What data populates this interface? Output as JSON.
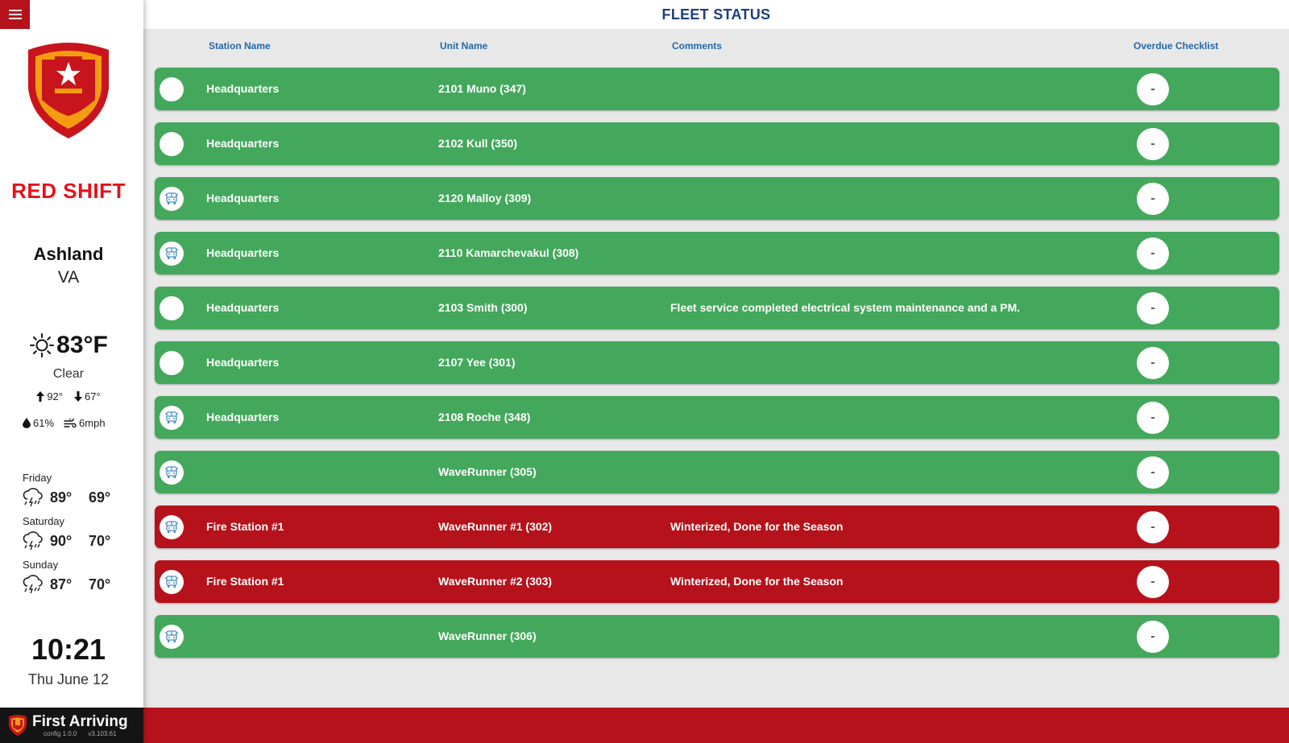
{
  "header": {
    "title": "FLEET STATUS"
  },
  "columns": {
    "station": "Station Name",
    "unit": "Unit Name",
    "comments": "Comments",
    "overdue": "Overdue Checklist"
  },
  "sidebar": {
    "shift": "RED SHIFT",
    "city": "Ashland",
    "state": "VA",
    "weather": {
      "temp": "83°F",
      "condition": "Clear",
      "high": "92°",
      "low": "67°",
      "humidity": "61%",
      "wind": "6mph",
      "forecast": [
        {
          "day": "Friday",
          "high": "89°",
          "low": "69°",
          "icon": "thunderstorm-icon"
        },
        {
          "day": "Saturday",
          "high": "90°",
          "low": "70°",
          "icon": "thunderstorm-icon"
        },
        {
          "day": "Sunday",
          "high": "87°",
          "low": "70°",
          "icon": "thunderstorm-icon"
        }
      ]
    },
    "clock": "10:21",
    "date": "Thu June 12",
    "brand": {
      "name": "First Arriving",
      "config": "config 1.0.0",
      "version": "v3.103.61"
    }
  },
  "colors": {
    "ok": "#43a85c",
    "out_of_service": "#b6121b",
    "header_text": "#1c3f7a",
    "column_text": "#2468a8"
  },
  "units": [
    {
      "status": "green",
      "icon": "blank",
      "station": "Headquarters",
      "unit": "2101 Muno (347)",
      "comment": "",
      "overdue": "-"
    },
    {
      "status": "green",
      "icon": "blank",
      "station": "Headquarters",
      "unit": "2102 Kull (350)",
      "comment": "",
      "overdue": "-"
    },
    {
      "status": "green",
      "icon": "vehicle",
      "station": "Headquarters",
      "unit": "2120 Malloy (309)",
      "comment": "",
      "overdue": "-"
    },
    {
      "status": "green",
      "icon": "vehicle",
      "station": "Headquarters",
      "unit": "2110 Kamarchevakul (308)",
      "comment": "",
      "overdue": "-"
    },
    {
      "status": "green",
      "icon": "blank",
      "station": "Headquarters",
      "unit": "2103 Smith (300)",
      "comment": "Fleet service completed electrical system maintenance and a PM.",
      "overdue": "-"
    },
    {
      "status": "green",
      "icon": "blank",
      "station": "Headquarters",
      "unit": "2107 Yee (301)",
      "comment": "",
      "overdue": "-"
    },
    {
      "status": "green",
      "icon": "vehicle",
      "station": "Headquarters",
      "unit": "2108 Roche (348)",
      "comment": "",
      "overdue": "-"
    },
    {
      "status": "green",
      "icon": "vehicle",
      "station": "",
      "unit": "WaveRunner (305)",
      "comment": "",
      "overdue": "-"
    },
    {
      "status": "red",
      "icon": "vehicle",
      "station": "Fire Station #1",
      "unit": "WaveRunner #1 (302)",
      "comment": "Winterized, Done for the Season",
      "overdue": "-"
    },
    {
      "status": "red",
      "icon": "vehicle",
      "station": "Fire Station #1",
      "unit": "WaveRunner #2 (303)",
      "comment": "Winterized, Done for the Season",
      "overdue": "-"
    },
    {
      "status": "green",
      "icon": "vehicle",
      "station": "",
      "unit": "WaveRunner (306)",
      "comment": "",
      "overdue": "-"
    }
  ]
}
